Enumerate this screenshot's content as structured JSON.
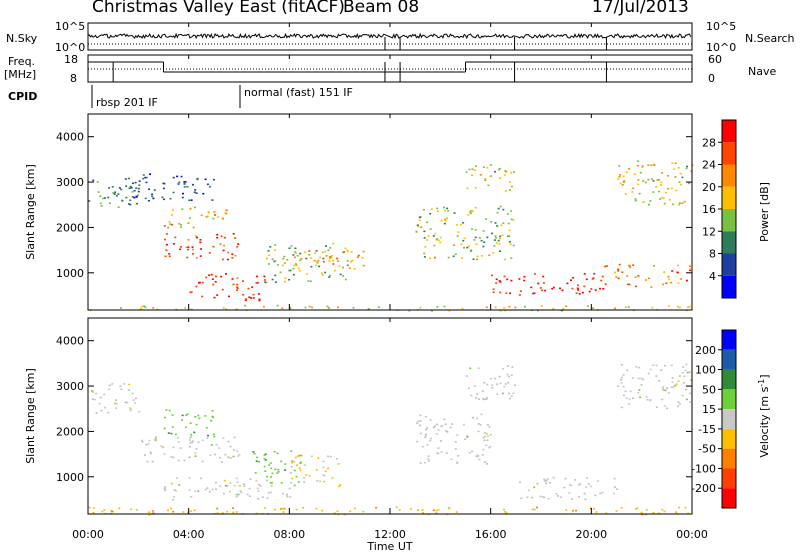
{
  "title": {
    "station": "Christmas Valley East (fitACF)",
    "beam": "Beam 08",
    "date": "17/Jul/2013"
  },
  "noise_panel": {
    "left_label": "N.Sky",
    "right_label": "N.Search",
    "left_ticks": [
      "10^5",
      "10^0"
    ],
    "right_ticks": [
      "10^5",
      "10^0"
    ]
  },
  "freq_panel": {
    "left_label_1": "Freq.",
    "left_label_2": "[MHz]",
    "right_label": "Nave",
    "left_ticks": [
      "18",
      "8"
    ],
    "right_ticks": [
      "60",
      "0"
    ]
  },
  "cpid": {
    "label": "CPID",
    "modes": [
      "rbsp 201 IF",
      "normal (fast) 151 IF"
    ]
  },
  "colors": {
    "power_scale": [
      "#0000ff",
      "#1f3f9f",
      "#2e7d5a",
      "#7ac142",
      "#ffbf00",
      "#ff8800",
      "#ff4400",
      "#ff0000"
    ],
    "velocity_scale": [
      "#0000ff",
      "#1a5ca8",
      "#2f8a3a",
      "#6ed13a",
      "#c8c8c8",
      "#ffbf00",
      "#ff7f00",
      "#ff3f00",
      "#ff0000"
    ],
    "ground_scatter": "#c0c0c0"
  },
  "chart_data": [
    {
      "type": "heatmap",
      "title": "Power",
      "ylabel": "Slant Range [km]",
      "xlabel": "Time UT",
      "x_ticks": [
        "00:00",
        "04:00",
        "08:00",
        "12:00",
        "16:00",
        "20:00",
        "00:00"
      ],
      "y_ticks": [
        "1000",
        "2000",
        "3000",
        "4000"
      ],
      "ylim": [
        180,
        4500
      ],
      "xlim_hours": [
        0,
        24
      ],
      "colorbar_label": "Power [dB]",
      "colorbar_ticks": [
        "28",
        "24",
        "20",
        "16",
        "12",
        "8",
        "4"
      ],
      "colorbar_range": [
        0,
        30
      ],
      "features": [
        {
          "t0": 0.0,
          "t1": 2.0,
          "r0": 2400,
          "r1": 3100,
          "level": 10
        },
        {
          "t0": 1.0,
          "t1": 5.0,
          "r0": 2600,
          "r1": 3200,
          "level": 6
        },
        {
          "t0": 3.0,
          "t1": 5.5,
          "r0": 2000,
          "r1": 2500,
          "level": 18
        },
        {
          "t0": 3.0,
          "t1": 6.0,
          "r0": 1300,
          "r1": 1900,
          "level": 26
        },
        {
          "t0": 4.0,
          "t1": 7.0,
          "r0": 400,
          "r1": 1000,
          "level": 26
        },
        {
          "t0": 7.0,
          "t1": 10.5,
          "r0": 800,
          "r1": 1700,
          "level": 14
        },
        {
          "t0": 8.0,
          "t1": 11.0,
          "r0": 1100,
          "r1": 1500,
          "level": 20
        },
        {
          "t0": 13.0,
          "t1": 17.0,
          "r0": 1300,
          "r1": 2500,
          "level": 14
        },
        {
          "t0": 15.0,
          "t1": 17.0,
          "r0": 2800,
          "r1": 3400,
          "level": 16
        },
        {
          "t0": 16.0,
          "t1": 20.5,
          "r0": 500,
          "r1": 1000,
          "level": 28
        },
        {
          "t0": 20.5,
          "t1": 24.0,
          "r0": 700,
          "r1": 1200,
          "level": 22
        },
        {
          "t0": 21.0,
          "t1": 24.0,
          "r0": 2500,
          "r1": 3500,
          "level": 16
        },
        {
          "t0": 0.0,
          "t1": 24.0,
          "r0": 180,
          "r1": 300,
          "level": 16
        }
      ]
    },
    {
      "type": "heatmap",
      "title": "Velocity",
      "ylabel": "Slant Range [km]",
      "xlabel": "Time UT",
      "x_ticks": [
        "00:00",
        "04:00",
        "08:00",
        "12:00",
        "16:00",
        "20:00",
        "00:00"
      ],
      "y_ticks": [
        "1000",
        "2000",
        "3000",
        "4000"
      ],
      "ylim": [
        180,
        4500
      ],
      "xlim_hours": [
        0,
        24
      ],
      "colorbar_label": "Velocity [m s-1]",
      "colorbar_ticks": [
        "200",
        "100",
        "50",
        "15",
        "-15",
        "-50",
        "-100",
        "-200"
      ],
      "colorbar_range": [
        -250,
        250
      ],
      "features": [
        {
          "t0": 0.0,
          "t1": 2.0,
          "r0": 2400,
          "r1": 3100,
          "vel": 0
        },
        {
          "t0": 3.0,
          "t1": 5.0,
          "r0": 1900,
          "r1": 2500,
          "vel": 60
        },
        {
          "t0": 2.0,
          "t1": 6.0,
          "r0": 1300,
          "r1": 1900,
          "vel": 0
        },
        {
          "t0": 6.5,
          "t1": 8.5,
          "r0": 800,
          "r1": 1600,
          "vel": 60
        },
        {
          "t0": 8.0,
          "t1": 10.0,
          "r0": 800,
          "r1": 1500,
          "vel": -40
        },
        {
          "t0": 3.0,
          "t1": 8.0,
          "r0": 500,
          "r1": 1000,
          "vel": 0
        },
        {
          "t0": 13.0,
          "t1": 16.0,
          "r0": 1300,
          "r1": 2400,
          "vel": 0
        },
        {
          "t0": 15.0,
          "t1": 17.0,
          "r0": 2700,
          "r1": 3500,
          "vel": 0
        },
        {
          "t0": 17.0,
          "t1": 21.0,
          "r0": 500,
          "r1": 1000,
          "vel": 0
        },
        {
          "t0": 21.0,
          "t1": 24.0,
          "r0": 2500,
          "r1": 3500,
          "vel": 0
        },
        {
          "t0": 0.0,
          "t1": 24.0,
          "r0": 180,
          "r1": 350,
          "vel": -60
        }
      ]
    }
  ]
}
